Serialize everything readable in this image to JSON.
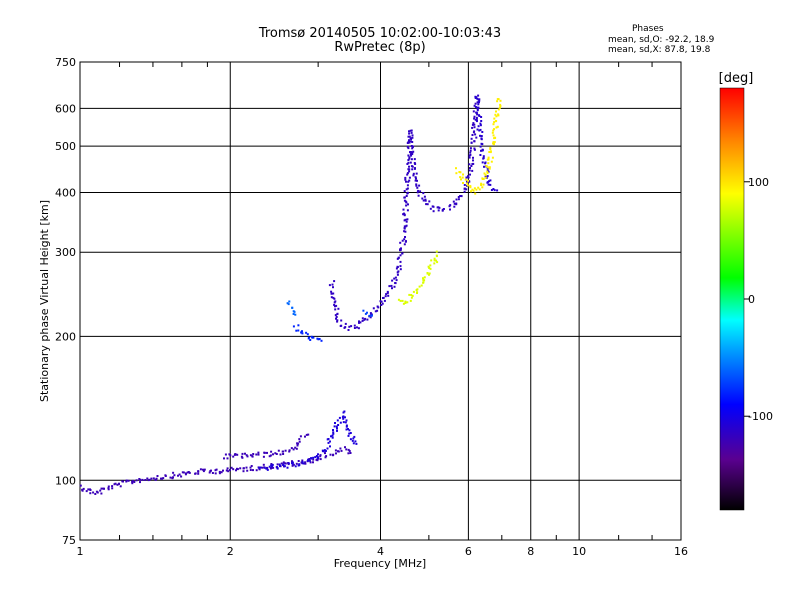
{
  "chart_data": {
    "type": "scatter",
    "title": "Tromsø 20140505 10:02:00-10:03:43",
    "subtitle": "RwPretec (8p)",
    "xlabel": "Frequency [MHz]",
    "ylabel": "Stationary phase Virtual Height [km]",
    "x_scale": "log",
    "y_scale": "log",
    "xlim": [
      1,
      16
    ],
    "ylim": [
      75,
      750
    ],
    "x_ticks": [
      1,
      2,
      4,
      6,
      8,
      10,
      16
    ],
    "y_ticks": [
      75,
      100,
      200,
      300,
      400,
      500,
      600,
      750
    ],
    "grid": true,
    "stats": {
      "title": "Phases",
      "line_o": "mean, sd,O: -92.2, 18.9",
      "line_x": "mean, sd,X:  87.8, 19.8"
    },
    "colorbar": {
      "label": "[deg]",
      "ticks": [
        "100",
        "0",
        "-100"
      ],
      "tick_values": [
        100,
        0,
        -100
      ],
      "range": [
        -180,
        180
      ]
    },
    "traces": [
      {
        "points": [
          [
            1.0,
            97
          ],
          [
            1.04,
            95
          ],
          [
            1.08,
            94
          ],
          [
            1.12,
            96
          ],
          [
            1.2,
            98
          ],
          [
            1.3,
            100
          ],
          [
            1.4,
            101
          ],
          [
            1.5,
            102
          ],
          [
            1.6,
            103
          ],
          [
            1.7,
            104
          ],
          [
            1.85,
            104.5
          ],
          [
            2.0,
            105
          ],
          [
            2.2,
            106
          ],
          [
            2.4,
            107
          ],
          [
            2.6,
            108
          ],
          [
            2.8,
            109
          ],
          [
            3.0,
            111
          ],
          [
            3.2,
            114
          ],
          [
            3.4,
            116
          ],
          [
            3.5,
            114
          ]
        ],
        "phase": -120
      },
      {
        "points": [
          [
            1.95,
            112
          ],
          [
            2.1,
            112.5
          ],
          [
            2.3,
            113
          ],
          [
            2.5,
            114
          ],
          [
            2.65,
            116
          ],
          [
            2.75,
            120
          ],
          [
            2.85,
            125
          ]
        ],
        "phase": -120
      },
      {
        "points": [
          [
            2.3,
            106
          ],
          [
            2.6,
            107
          ],
          [
            2.9,
            110
          ],
          [
            3.1,
            116
          ],
          [
            3.2,
            124
          ],
          [
            3.3,
            133
          ],
          [
            3.35,
            138
          ],
          [
            3.45,
            126
          ],
          [
            3.6,
            118
          ]
        ],
        "phase": -105
      },
      {
        "points": [
          [
            2.7,
            210
          ],
          [
            2.75,
            205
          ],
          [
            2.85,
            200
          ],
          [
            2.95,
            197
          ],
          [
            3.05,
            196
          ]
        ],
        "phase": -80
      },
      {
        "points": [
          [
            2.6,
            235
          ],
          [
            2.7,
            222
          ]
        ],
        "phase": -60
      },
      {
        "points": [
          [
            3.2,
            258
          ],
          [
            3.23,
            240
          ],
          [
            3.27,
            225
          ],
          [
            3.33,
            212
          ],
          [
            3.45,
            208
          ],
          [
            3.6,
            210
          ],
          [
            3.75,
            217
          ],
          [
            3.9,
            225
          ],
          [
            4.05,
            238
          ],
          [
            4.2,
            252
          ],
          [
            4.35,
            275
          ],
          [
            4.45,
            320
          ],
          [
            4.5,
            380
          ],
          [
            4.55,
            450
          ],
          [
            4.6,
            540
          ]
        ],
        "phase": -115
      },
      {
        "points": [
          [
            4.6,
            540
          ],
          [
            4.65,
            450
          ],
          [
            4.75,
            405
          ],
          [
            4.9,
            385
          ],
          [
            5.1,
            370
          ],
          [
            5.3,
            368
          ],
          [
            5.5,
            372
          ],
          [
            5.7,
            382
          ],
          [
            5.9,
            405
          ],
          [
            6.05,
            445
          ],
          [
            6.15,
            510
          ],
          [
            6.2,
            580
          ],
          [
            6.25,
            640
          ]
        ],
        "phase": -115
      },
      {
        "points": [
          [
            6.25,
            640
          ],
          [
            6.3,
            560
          ],
          [
            6.35,
            500
          ],
          [
            6.45,
            460
          ],
          [
            6.6,
            420
          ],
          [
            6.8,
            400
          ]
        ],
        "phase": -110
      },
      {
        "points": [
          [
            3.7,
            224
          ],
          [
            3.85,
            222
          ]
        ],
        "phase": -70
      },
      {
        "points": [
          [
            4.35,
            238
          ],
          [
            4.45,
            235
          ],
          [
            4.6,
            240
          ],
          [
            4.75,
            250
          ],
          [
            4.95,
            268
          ],
          [
            5.1,
            285
          ],
          [
            5.25,
            300
          ]
        ],
        "phase": 80
      },
      {
        "points": [
          [
            5.7,
            445
          ],
          [
            5.85,
            430
          ],
          [
            6.0,
            410
          ],
          [
            6.2,
            400
          ],
          [
            6.4,
            420
          ],
          [
            6.6,
            460
          ],
          [
            6.75,
            520
          ],
          [
            6.85,
            580
          ],
          [
            6.9,
            635
          ]
        ],
        "phase": 95
      }
    ]
  }
}
